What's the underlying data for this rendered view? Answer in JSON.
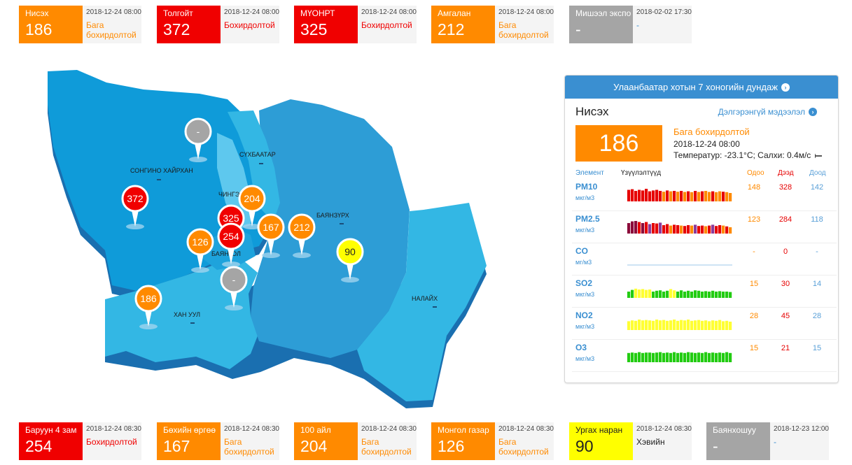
{
  "colors": {
    "orange": "#ff8a00",
    "red": "#f00000",
    "yellow": "#ffff00",
    "gray": "#a5a5a5",
    "accent": "#3a8fd1",
    "map_dark": "#0f9bd9",
    "map_mid": "#2d9dd6",
    "map_light": "#33b7e4"
  },
  "top_stations": [
    {
      "name": "Нисэх",
      "value": "186",
      "time": "2018-12-24 08:00",
      "status": "Бага бохирдолтой",
      "level": "orange"
    },
    {
      "name": "Толгойт",
      "value": "372",
      "time": "2018-12-24 08:00",
      "status": "Бохирдолтой",
      "level": "red"
    },
    {
      "name": "МҮОНРТ",
      "value": "325",
      "time": "2018-12-24 08:00",
      "status": "Бохирдолтой",
      "level": "red"
    },
    {
      "name": "Амгалан",
      "value": "212",
      "time": "2018-12-24 08:00",
      "status": "Бага бохирдолтой",
      "level": "orange"
    },
    {
      "name": "Мишээл экспо",
      "value": "-",
      "time": "2018-02-02 17:30",
      "status": "-",
      "level": "gray"
    }
  ],
  "bottom_stations": [
    {
      "name": "Баруун 4 зам",
      "value": "254",
      "time": "2018-12-24 08:30",
      "status": "Бохирдолтой",
      "level": "red"
    },
    {
      "name": "Бөхийн өргөө",
      "value": "167",
      "time": "2018-12-24 08:30",
      "status": "Бага бохирдолтой",
      "level": "orange"
    },
    {
      "name": "100 айл",
      "value": "204",
      "time": "2018-12-24 08:30",
      "status": "Бага бохирдолтой",
      "level": "orange"
    },
    {
      "name": "Монгол газар",
      "value": "126",
      "time": "2018-12-24 08:30",
      "status": "Бага бохирдолтой",
      "level": "orange"
    },
    {
      "name": "Ургах наран",
      "value": "90",
      "time": "2018-12-24 08:30",
      "status": "Хэвийн",
      "level": "yellow"
    },
    {
      "name": "Баянхошуу",
      "value": "-",
      "time": "2018-12-23 12:00",
      "status": "-",
      "level": "gray"
    }
  ],
  "map": {
    "districts": [
      "СОНГИНО ХАЙРХАН",
      "СҮХБААТАР",
      "ЧИНГЭЛТЭЙ",
      "БАЯНЗҮРХ",
      "БАЯНГОЛ",
      "ХАН УУЛ",
      "НАЛАЙХ"
    ],
    "markers": [
      {
        "value": "-",
        "level": "gray"
      },
      {
        "value": "372",
        "level": "red"
      },
      {
        "value": "204",
        "level": "orange"
      },
      {
        "value": "325",
        "level": "red"
      },
      {
        "value": "254",
        "level": "red"
      },
      {
        "value": "167",
        "level": "orange"
      },
      {
        "value": "212",
        "level": "orange"
      },
      {
        "value": "126",
        "level": "orange"
      },
      {
        "value": "90",
        "level": "yellow"
      },
      {
        "value": "-",
        "level": "gray"
      },
      {
        "value": "186",
        "level": "orange"
      }
    ]
  },
  "panel": {
    "header": "Улаанбаатар хотын 7 хоногийн дундаж",
    "station": "Нисэх",
    "more_link": "Дэлгэрэнгүй мэдээлэл",
    "value": "186",
    "status": "Бага бохирдолтой",
    "time": "2018-12-24 08:00",
    "weather": "Температур: -23.1°C; Салхи: 0.4м/с",
    "columns": {
      "element": "Элемент",
      "indicators": "Үзүүлэлтүүд",
      "current": "Одоо",
      "max": "Дээд",
      "min": "Доод"
    },
    "pollutants": [
      {
        "name": "PM10",
        "unit": "мкг/м3",
        "current": "148",
        "max": "328",
        "min": "142",
        "bars": [
          0.55,
          0.58,
          0.5,
          0.55,
          0.52,
          0.6,
          0.48,
          0.52,
          0.55,
          0.5,
          0.46,
          0.52,
          0.48,
          0.5,
          0.46,
          0.5,
          0.45,
          0.48,
          0.44,
          0.5,
          0.45,
          0.48,
          0.5,
          0.45,
          0.48,
          0.44,
          0.48,
          0.46,
          0.44,
          0.4
        ],
        "colors": [
          "#e60000",
          "#e60000",
          "#e60000",
          "#e60000",
          "#e60000",
          "#e60000",
          "#e60000",
          "#e60000",
          "#e60000",
          "#e60000",
          "#ff8a00",
          "#e60000",
          "#ff8a00",
          "#e60000",
          "#ff8a00",
          "#e60000",
          "#ff8a00",
          "#e60000",
          "#ff8a00",
          "#e60000",
          "#ff8a00",
          "#e60000",
          "#ff8a00",
          "#ff8a00",
          "#e60000",
          "#ff8a00",
          "#ff8a00",
          "#e60000",
          "#ff8a00",
          "#ff8a00"
        ]
      },
      {
        "name": "PM2.5",
        "unit": "мкг/м3",
        "current": "123",
        "max": "284",
        "min": "118",
        "bars": [
          0.5,
          0.58,
          0.6,
          0.55,
          0.5,
          0.55,
          0.45,
          0.5,
          0.48,
          0.52,
          0.4,
          0.45,
          0.38,
          0.42,
          0.4,
          0.38,
          0.36,
          0.4,
          0.38,
          0.42,
          0.36,
          0.38,
          0.35,
          0.38,
          0.42,
          0.36,
          0.4,
          0.38,
          0.34,
          0.3
        ],
        "colors": [
          "#8b0a3a",
          "#8b0a3a",
          "#8b0a3a",
          "#e60000",
          "#8b0a3a",
          "#e60000",
          "#8b3a9a",
          "#e60000",
          "#e60000",
          "#8b3a9a",
          "#e60000",
          "#e60000",
          "#ff8a00",
          "#e60000",
          "#e60000",
          "#ff8a00",
          "#e60000",
          "#e60000",
          "#ff8a00",
          "#8b3a9a",
          "#e60000",
          "#e60000",
          "#ff8a00",
          "#e60000",
          "#8b3a9a",
          "#e60000",
          "#e60000",
          "#ff8a00",
          "#e60000",
          "#ff8a00"
        ]
      },
      {
        "name": "CO",
        "unit": "мг/м3",
        "current": "-",
        "max": "0",
        "min": "-",
        "bars": [],
        "colors": []
      },
      {
        "name": "SO2",
        "unit": "мкг/м3",
        "current": "15",
        "max": "30",
        "min": "14",
        "bars": [
          0.3,
          0.38,
          0.44,
          0.4,
          0.42,
          0.38,
          0.4,
          0.3,
          0.34,
          0.36,
          0.3,
          0.34,
          0.42,
          0.36,
          0.3,
          0.36,
          0.3,
          0.34,
          0.3,
          0.36,
          0.34,
          0.3,
          0.32,
          0.3,
          0.34,
          0.3,
          0.32,
          0.3,
          0.3,
          0.28
        ],
        "colors": [
          "#22cc11",
          "#22cc11",
          "#ffff33",
          "#ffff33",
          "#ffff33",
          "#ffff33",
          "#ffff33",
          "#22cc11",
          "#22cc11",
          "#22cc11",
          "#22cc11",
          "#22cc11",
          "#ffff33",
          "#ffff33",
          "#22cc11",
          "#22cc11",
          "#22cc11",
          "#22cc11",
          "#22cc11",
          "#22cc11",
          "#22cc11",
          "#22cc11",
          "#22cc11",
          "#22cc11",
          "#22cc11",
          "#22cc11",
          "#22cc11",
          "#22cc11",
          "#22cc11",
          "#22cc11"
        ]
      },
      {
        "name": "NO2",
        "unit": "мкг/м3",
        "current": "28",
        "max": "45",
        "min": "28",
        "bars": [
          0.42,
          0.46,
          0.44,
          0.5,
          0.46,
          0.48,
          0.46,
          0.44,
          0.5,
          0.46,
          0.48,
          0.44,
          0.46,
          0.5,
          0.44,
          0.48,
          0.46,
          0.5,
          0.44,
          0.46,
          0.48,
          0.44,
          0.46,
          0.42,
          0.46,
          0.44,
          0.48,
          0.42,
          0.44,
          0.4
        ],
        "colors": [
          "#ffff33",
          "#ffff33",
          "#ffff33",
          "#ffff33",
          "#ffff33",
          "#ffff33",
          "#ffff33",
          "#ffff33",
          "#ffff33",
          "#ffff33",
          "#ffff33",
          "#ffff33",
          "#ffff33",
          "#ffff33",
          "#ffff33",
          "#ffff33",
          "#ffff33",
          "#ffff33",
          "#ffff33",
          "#ffff33",
          "#ffff33",
          "#ffff33",
          "#ffff33",
          "#ffff33",
          "#ffff33",
          "#ffff33",
          "#ffff33",
          "#ffff33",
          "#ffff33",
          "#ffff33"
        ]
      },
      {
        "name": "O3",
        "unit": "мкг/м3",
        "current": "15",
        "max": "21",
        "min": "15",
        "bars": [
          0.44,
          0.46,
          0.44,
          0.48,
          0.44,
          0.46,
          0.46,
          0.44,
          0.46,
          0.48,
          0.44,
          0.46,
          0.44,
          0.48,
          0.44,
          0.46,
          0.44,
          0.48,
          0.46,
          0.44,
          0.46,
          0.44,
          0.48,
          0.44,
          0.46,
          0.44,
          0.46,
          0.44,
          0.48,
          0.44
        ],
        "colors": [
          "#22cc11",
          "#22cc11",
          "#22cc11",
          "#22cc11",
          "#22cc11",
          "#22cc11",
          "#22cc11",
          "#22cc11",
          "#22cc11",
          "#22cc11",
          "#22cc11",
          "#22cc11",
          "#22cc11",
          "#22cc11",
          "#22cc11",
          "#22cc11",
          "#22cc11",
          "#22cc11",
          "#22cc11",
          "#22cc11",
          "#22cc11",
          "#22cc11",
          "#22cc11",
          "#22cc11",
          "#22cc11",
          "#22cc11",
          "#22cc11",
          "#22cc11",
          "#22cc11",
          "#22cc11"
        ]
      }
    ]
  }
}
